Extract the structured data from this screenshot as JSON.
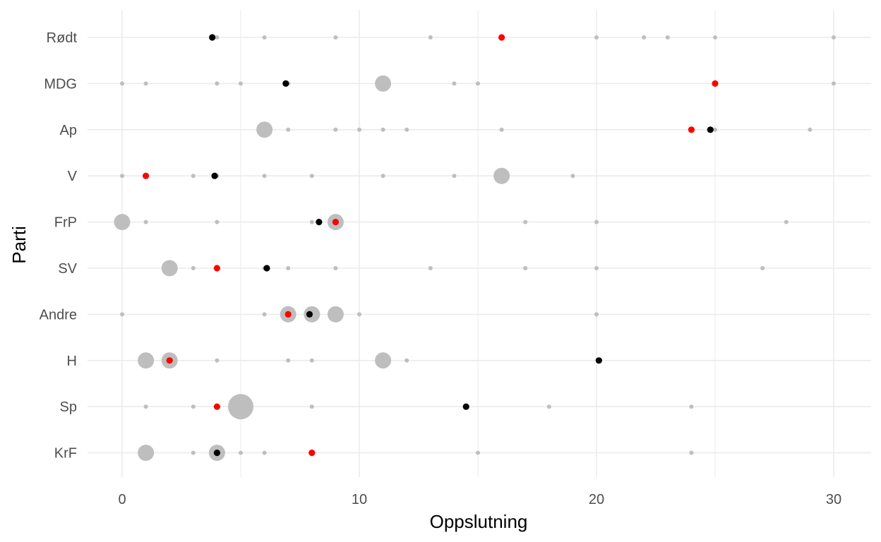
{
  "chart_data": {
    "type": "scatter",
    "title": "",
    "xlabel": "Oppslutning",
    "ylabel": "Parti",
    "xlim": [
      -1.3,
      31.3
    ],
    "x_ticks": [
      0,
      10,
      20,
      30
    ],
    "x_minor_ticks": [
      5,
      15,
      25
    ],
    "grid": true,
    "legend": "none",
    "categories": [
      "Rødt",
      "MDG",
      "Ap",
      "V",
      "FrP",
      "SV",
      "Andre",
      "H",
      "Sp",
      "KrF"
    ],
    "colors": {
      "spread": "#bebebe",
      "actual": "#ff0000",
      "mean": "#000000",
      "grid": "#ebebeb"
    },
    "series": [
      {
        "key": "spread",
        "points": [
          {
            "category": "Rødt",
            "x": 4,
            "n": 1
          },
          {
            "category": "Rødt",
            "x": 6,
            "n": 1
          },
          {
            "category": "Rødt",
            "x": 9,
            "n": 1
          },
          {
            "category": "Rødt",
            "x": 13,
            "n": 1
          },
          {
            "category": "Rødt",
            "x": 16,
            "n": 1
          },
          {
            "category": "Rødt",
            "x": 20,
            "n": 1
          },
          {
            "category": "Rødt",
            "x": 22,
            "n": 1
          },
          {
            "category": "Rødt",
            "x": 23,
            "n": 1
          },
          {
            "category": "Rødt",
            "x": 25,
            "n": 1
          },
          {
            "category": "Rødt",
            "x": 30,
            "n": 1
          },
          {
            "category": "MDG",
            "x": 0,
            "n": 1
          },
          {
            "category": "MDG",
            "x": 1,
            "n": 1
          },
          {
            "category": "MDG",
            "x": 4,
            "n": 1
          },
          {
            "category": "MDG",
            "x": 5,
            "n": 1
          },
          {
            "category": "MDG",
            "x": 7,
            "n": 1
          },
          {
            "category": "MDG",
            "x": 11,
            "n": 2
          },
          {
            "category": "MDG",
            "x": 14,
            "n": 1
          },
          {
            "category": "MDG",
            "x": 15,
            "n": 1
          },
          {
            "category": "MDG",
            "x": 25,
            "n": 1
          },
          {
            "category": "MDG",
            "x": 30,
            "n": 1
          },
          {
            "category": "Ap",
            "x": 6,
            "n": 2
          },
          {
            "category": "Ap",
            "x": 7,
            "n": 1
          },
          {
            "category": "Ap",
            "x": 9,
            "n": 1
          },
          {
            "category": "Ap",
            "x": 10,
            "n": 1
          },
          {
            "category": "Ap",
            "x": 11,
            "n": 1
          },
          {
            "category": "Ap",
            "x": 12,
            "n": 1
          },
          {
            "category": "Ap",
            "x": 16,
            "n": 1
          },
          {
            "category": "Ap",
            "x": 24,
            "n": 1
          },
          {
            "category": "Ap",
            "x": 25,
            "n": 1
          },
          {
            "category": "Ap",
            "x": 29,
            "n": 1
          },
          {
            "category": "V",
            "x": 0,
            "n": 1
          },
          {
            "category": "V",
            "x": 1,
            "n": 1
          },
          {
            "category": "V",
            "x": 3,
            "n": 1
          },
          {
            "category": "V",
            "x": 4,
            "n": 1
          },
          {
            "category": "V",
            "x": 6,
            "n": 1
          },
          {
            "category": "V",
            "x": 8,
            "n": 1
          },
          {
            "category": "V",
            "x": 11,
            "n": 1
          },
          {
            "category": "V",
            "x": 14,
            "n": 1
          },
          {
            "category": "V",
            "x": 16,
            "n": 2
          },
          {
            "category": "V",
            "x": 19,
            "n": 1
          },
          {
            "category": "FrP",
            "x": 0,
            "n": 2
          },
          {
            "category": "FrP",
            "x": 1,
            "n": 1
          },
          {
            "category": "FrP",
            "x": 4,
            "n": 1
          },
          {
            "category": "FrP",
            "x": 8,
            "n": 1
          },
          {
            "category": "FrP",
            "x": 9,
            "n": 2
          },
          {
            "category": "FrP",
            "x": 17,
            "n": 1
          },
          {
            "category": "FrP",
            "x": 20,
            "n": 1
          },
          {
            "category": "FrP",
            "x": 28,
            "n": 1
          },
          {
            "category": "SV",
            "x": 2,
            "n": 2
          },
          {
            "category": "SV",
            "x": 3,
            "n": 1
          },
          {
            "category": "SV",
            "x": 4,
            "n": 1
          },
          {
            "category": "SV",
            "x": 6,
            "n": 1
          },
          {
            "category": "SV",
            "x": 7,
            "n": 1
          },
          {
            "category": "SV",
            "x": 9,
            "n": 1
          },
          {
            "category": "SV",
            "x": 13,
            "n": 1
          },
          {
            "category": "SV",
            "x": 17,
            "n": 1
          },
          {
            "category": "SV",
            "x": 20,
            "n": 1
          },
          {
            "category": "SV",
            "x": 27,
            "n": 1
          },
          {
            "category": "Andre",
            "x": 0,
            "n": 1
          },
          {
            "category": "Andre",
            "x": 6,
            "n": 1
          },
          {
            "category": "Andre",
            "x": 7,
            "n": 2
          },
          {
            "category": "Andre",
            "x": 8,
            "n": 2
          },
          {
            "category": "Andre",
            "x": 9,
            "n": 2
          },
          {
            "category": "Andre",
            "x": 10,
            "n": 1
          },
          {
            "category": "Andre",
            "x": 20,
            "n": 1
          },
          {
            "category": "H",
            "x": 1,
            "n": 2
          },
          {
            "category": "H",
            "x": 2,
            "n": 2
          },
          {
            "category": "H",
            "x": 4,
            "n": 1
          },
          {
            "category": "H",
            "x": 7,
            "n": 1
          },
          {
            "category": "H",
            "x": 8,
            "n": 1
          },
          {
            "category": "H",
            "x": 11,
            "n": 2
          },
          {
            "category": "H",
            "x": 12,
            "n": 1
          },
          {
            "category": "Sp",
            "x": 1,
            "n": 1
          },
          {
            "category": "Sp",
            "x": 3,
            "n": 1
          },
          {
            "category": "Sp",
            "x": 5,
            "n": 4
          },
          {
            "category": "Sp",
            "x": 8,
            "n": 1
          },
          {
            "category": "Sp",
            "x": 18,
            "n": 1
          },
          {
            "category": "Sp",
            "x": 24,
            "n": 1
          },
          {
            "category": "KrF",
            "x": 1,
            "n": 2
          },
          {
            "category": "KrF",
            "x": 3,
            "n": 1
          },
          {
            "category": "KrF",
            "x": 4,
            "n": 2
          },
          {
            "category": "KrF",
            "x": 5,
            "n": 1
          },
          {
            "category": "KrF",
            "x": 6,
            "n": 1
          },
          {
            "category": "KrF",
            "x": 15,
            "n": 1
          },
          {
            "category": "KrF",
            "x": 24,
            "n": 1
          }
        ]
      },
      {
        "key": "actual",
        "points": [
          {
            "category": "Rødt",
            "x": 16
          },
          {
            "category": "MDG",
            "x": 25
          },
          {
            "category": "Ap",
            "x": 24
          },
          {
            "category": "V",
            "x": 1
          },
          {
            "category": "FrP",
            "x": 9
          },
          {
            "category": "SV",
            "x": 4
          },
          {
            "category": "Andre",
            "x": 7
          },
          {
            "category": "H",
            "x": 2
          },
          {
            "category": "Sp",
            "x": 4
          },
          {
            "category": "KrF",
            "x": 8
          }
        ]
      },
      {
        "key": "mean",
        "points": [
          {
            "category": "Rødt",
            "x": 3.8
          },
          {
            "category": "MDG",
            "x": 6.9
          },
          {
            "category": "Ap",
            "x": 24.8
          },
          {
            "category": "V",
            "x": 3.9
          },
          {
            "category": "FrP",
            "x": 8.3
          },
          {
            "category": "SV",
            "x": 6.1
          },
          {
            "category": "Andre",
            "x": 7.9
          },
          {
            "category": "H",
            "x": 20.1
          },
          {
            "category": "Sp",
            "x": 14.5
          },
          {
            "category": "KrF",
            "x": 4
          }
        ]
      }
    ]
  }
}
